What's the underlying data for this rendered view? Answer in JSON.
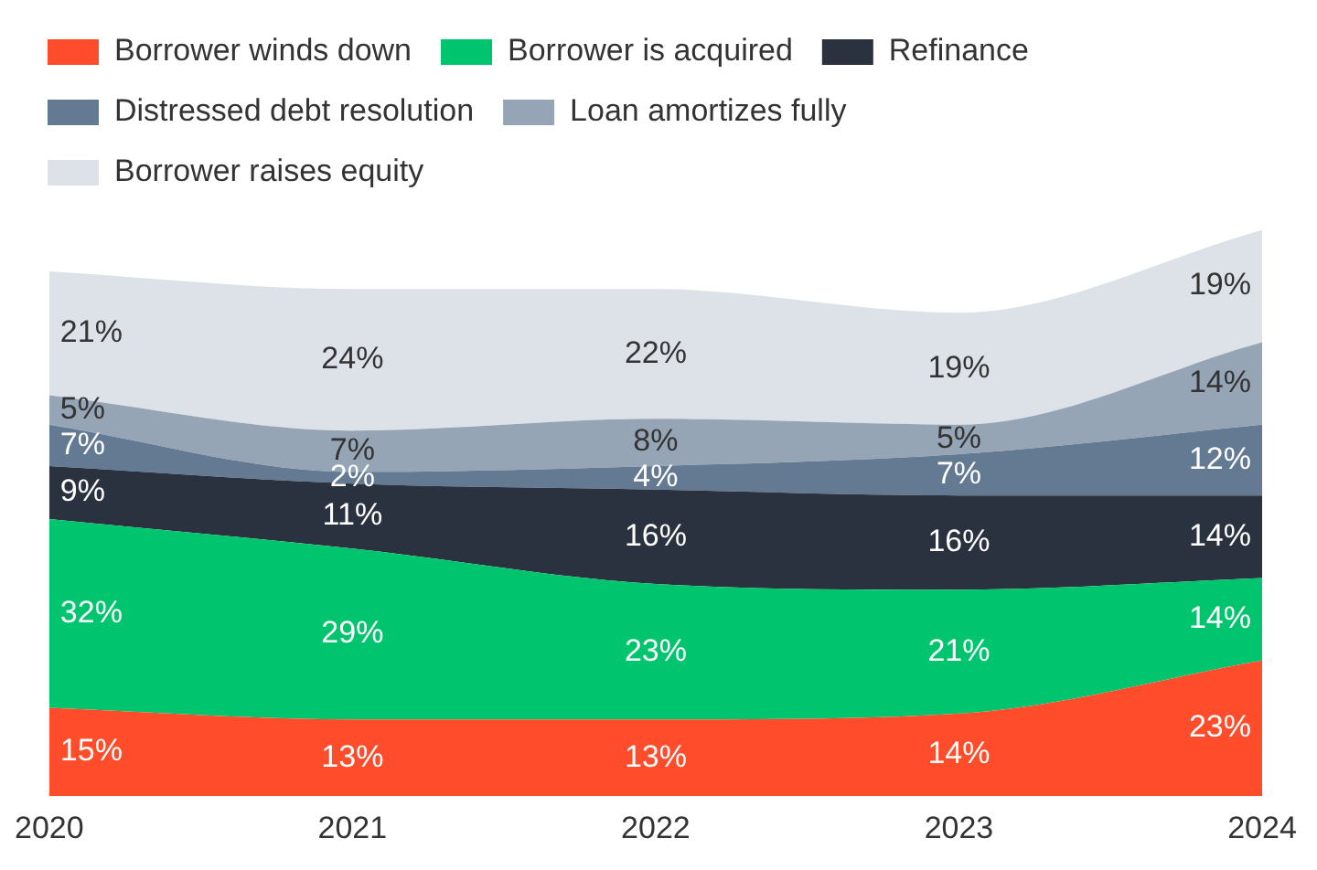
{
  "chart_data": {
    "type": "area",
    "stacked": true,
    "categories": [
      "2020",
      "2021",
      "2022",
      "2023",
      "2024"
    ],
    "tick_labels": "x",
    "grid": false,
    "legend": "top",
    "series": [
      {
        "name": "Borrower winds down",
        "color": "#ff4c2b",
        "values": [
          15,
          13,
          13,
          14,
          23
        ],
        "value_labels": [
          "15%",
          "13%",
          "13%",
          "14%",
          "23%"
        ]
      },
      {
        "name": "Borrower is acquired",
        "color": "#00c46e",
        "values": [
          32,
          29,
          23,
          21,
          14
        ],
        "value_labels": [
          "32%",
          "29%",
          "23%",
          "21%",
          "14%"
        ]
      },
      {
        "name": "Refinance",
        "color": "#2a323f",
        "values": [
          9,
          11,
          16,
          16,
          14
        ],
        "value_labels": [
          "9%",
          "11%",
          "16%",
          "16%",
          "14%"
        ]
      },
      {
        "name": "Distressed debt resolution",
        "color": "#637a92",
        "values": [
          7,
          2,
          4,
          7,
          12
        ],
        "value_labels": [
          "7%",
          "2%",
          "4%",
          "7%",
          "12%"
        ]
      },
      {
        "name": "Loan amortizes fully",
        "color": "#95a5b5",
        "values": [
          5,
          7,
          8,
          5,
          14
        ],
        "value_labels": [
          "5%",
          "7%",
          "8%",
          "5%",
          "14%"
        ]
      },
      {
        "name": "Borrower raises equity",
        "color": "#dde1e8",
        "values": [
          21,
          24,
          22,
          19,
          19
        ],
        "value_labels": [
          "21%",
          "24%",
          "22%",
          "19%",
          "19%"
        ]
      }
    ]
  }
}
